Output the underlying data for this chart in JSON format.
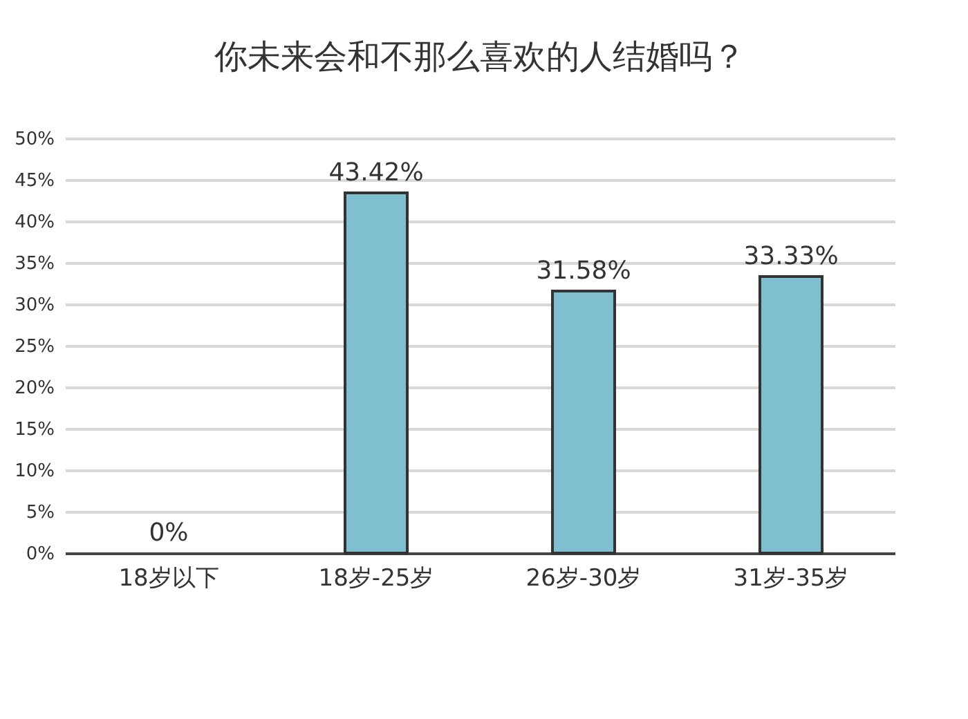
{
  "chart_data": {
    "type": "bar",
    "title": "你未来会和不那么喜欢的人结婚吗？",
    "categories": [
      "18岁以下",
      "18岁-25岁",
      "26岁-30岁",
      "31岁-35岁"
    ],
    "values": [
      0,
      43.42,
      31.58,
      33.33
    ],
    "value_labels": [
      "0%",
      "43.42%",
      "31.58%",
      "33.33%"
    ],
    "color": "#7fbfcf",
    "ylim": [
      0,
      50
    ],
    "yticks": [
      {
        "value": 0,
        "label": "0%"
      },
      {
        "value": 5,
        "label": "5%"
      },
      {
        "value": 10,
        "label": "10%"
      },
      {
        "value": 15,
        "label": "15%"
      },
      {
        "value": 20,
        "label": "20%"
      },
      {
        "value": 25,
        "label": "25%"
      },
      {
        "value": 30,
        "label": "30%"
      },
      {
        "value": 35,
        "label": "35%"
      },
      {
        "value": 40,
        "label": "40%"
      },
      {
        "value": 45,
        "label": "45%"
      },
      {
        "value": 50,
        "label": "50%"
      }
    ],
    "grid": "y"
  }
}
